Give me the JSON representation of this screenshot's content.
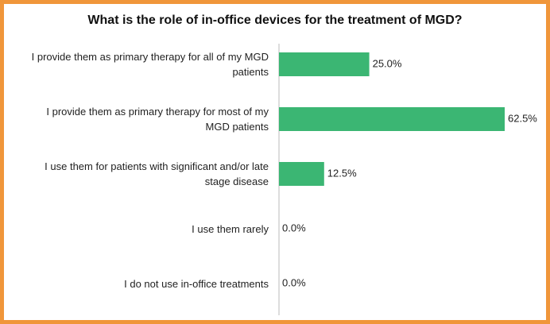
{
  "chart_data": {
    "type": "bar",
    "orientation": "horizontal",
    "title": "What is the role of in-office devices for the treatment of MGD?",
    "categories": [
      "I provide them as primary therapy for all of my MGD patients",
      "I provide them as primary therapy for most of my MGD patients",
      "I use them for patients with significant and/or late stage disease",
      "I use them rarely",
      "I do not use in-office treatments"
    ],
    "values": [
      25,
      62.5,
      12.5,
      0,
      0
    ],
    "value_labels": [
      "25.0%",
      "62.5%",
      "12.5%",
      "0.0%",
      "0.0%"
    ],
    "color": "#3bb673"
  }
}
